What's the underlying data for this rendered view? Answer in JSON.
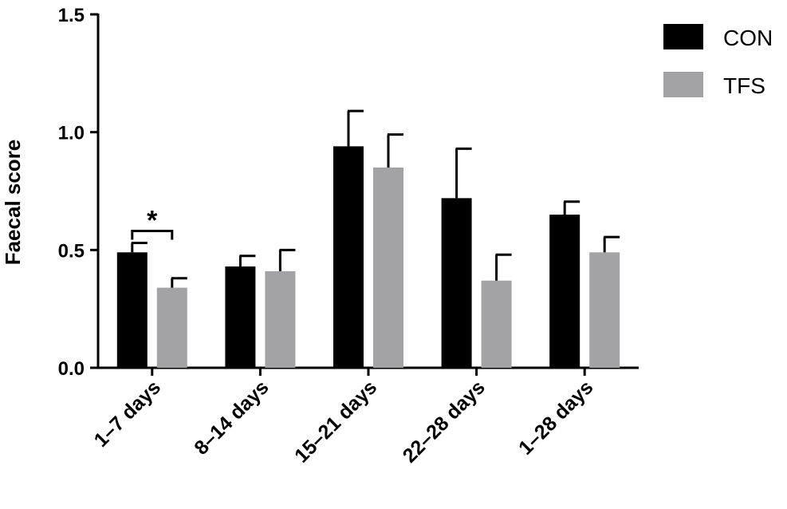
{
  "chart_data": {
    "type": "bar",
    "categories": [
      "1–7 days",
      "8–14 days",
      "15–21 days",
      "22–28 days",
      "1–28 days"
    ],
    "series": [
      {
        "name": "CON",
        "values": [
          0.49,
          0.43,
          0.94,
          0.72,
          0.65
        ],
        "errors": [
          0.04,
          0.045,
          0.15,
          0.21,
          0.055
        ],
        "color": "#000000"
      },
      {
        "name": "TFS",
        "values": [
          0.34,
          0.41,
          0.85,
          0.37,
          0.49
        ],
        "errors": [
          0.04,
          0.09,
          0.14,
          0.11,
          0.065
        ],
        "color": "#a3a3a5"
      }
    ],
    "ylabel": "Faecal score",
    "xlabel": "",
    "ylim": [
      0,
      1.5
    ],
    "yticks": [
      "0.0",
      "0.5",
      "1.0",
      "1.5"
    ],
    "grid": false,
    "legend_position": "top-right",
    "annotations": [
      {
        "category": "1–7 days",
        "text": "*"
      }
    ]
  }
}
